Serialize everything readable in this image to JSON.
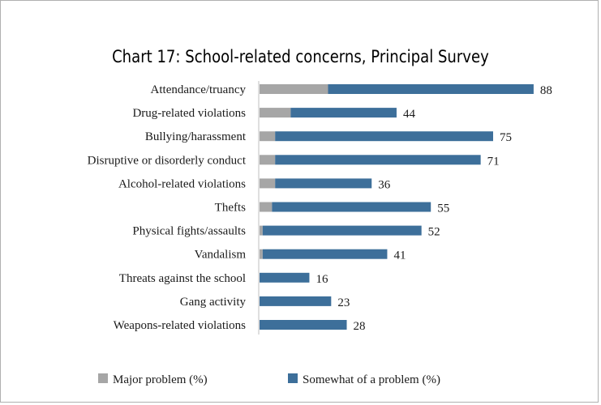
{
  "chart_data": {
    "type": "bar",
    "orientation": "horizontal",
    "stacked": true,
    "title": "Chart 17: School-related concerns, Principal Survey",
    "categories": [
      "Attendance/truancy",
      "Drug-related violations",
      "Bullying/harassment",
      "Disruptive or disorderly conduct",
      "Alcohol-related violations",
      "Thefts",
      "Physical fights/assaults",
      "Vandalism",
      "Threats against the school",
      "Gang activity",
      "Weapons-related violations"
    ],
    "series": [
      {
        "name": "Major problem (%)",
        "color": "#a6a6a6",
        "values": [
          22,
          10,
          5,
          5,
          5,
          4,
          1,
          1,
          0,
          0,
          0
        ]
      },
      {
        "name": "Somewhat of a problem (%)",
        "color": "#3d6f9a",
        "values": [
          66,
          34,
          70,
          66,
          31,
          51,
          51,
          40,
          16,
          23,
          28
        ]
      }
    ],
    "totals": [
      "88",
      "44",
      "75",
      "71",
      "36",
      "55",
      "52",
      "41",
      "16",
      "23",
      "28"
    ],
    "xlim": [
      0,
      100
    ],
    "grid": false,
    "legend_position": "bottom"
  }
}
